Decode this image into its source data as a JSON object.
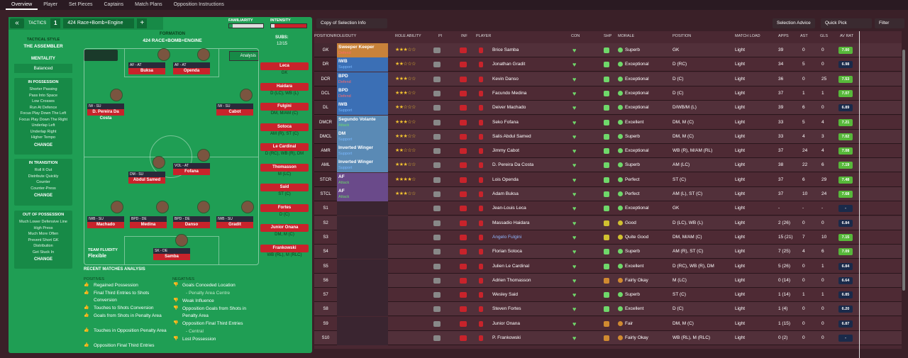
{
  "nav": {
    "tabs": [
      "Overview",
      "Player",
      "Set Pieces",
      "Captains",
      "Match Plans",
      "Opposition Instructions"
    ]
  },
  "tactic": {
    "label": "TACTICS",
    "slot": "1",
    "name": "424 Race+Bomb+Engine",
    "familiarity": "FAMILIARITY",
    "intensity": "INTENSITY"
  },
  "formation": {
    "title": "FORMATION",
    "name": "424 RACE+BOMB+ENGINE",
    "subs_label": "SUBS:",
    "subs_value": "12/15",
    "analysis": "Analysis"
  },
  "style": {
    "title": "TACTICAL STYLE",
    "name": "THE ASSEMBLER",
    "mentality_label": "MENTALITY",
    "mentality": "Balanced"
  },
  "possession": {
    "title": "IN POSSESSION",
    "items": [
      "Shorter Passing",
      "Pass Into Space",
      "Low Crosses",
      "Run At Defence",
      "Focus Play Down The Left",
      "Focus Play Down The Right",
      "Underlap Left",
      "Underlap Right",
      "Higher Tempo"
    ],
    "change": "CHANGE"
  },
  "transition": {
    "title": "IN TRANSITION",
    "items": [
      "Roll It Out",
      "Distribute Quickly",
      "Counter",
      "Counter-Press"
    ],
    "change": "CHANGE"
  },
  "oop": {
    "title": "OUT OF POSSESSION",
    "items": [
      "Much Lower Defensive Line",
      "High Press",
      "Much More Often",
      "Prevent Short GK",
      "Distribution",
      "Get Stuck In"
    ],
    "change": "CHANGE"
  },
  "fluidity": {
    "label": "TEAM FLUIDITY",
    "value": "Flexible"
  },
  "pitch_players": [
    {
      "role": "AF - AT",
      "name": "Buksa"
    },
    {
      "role": "AF - AT",
      "name": "Openda"
    },
    {
      "role": "IW - SU",
      "name": "D. Pereira Da Costa"
    },
    {
      "role": "IW - SU",
      "name": "Cabot"
    },
    {
      "role": "DM - SU",
      "name": "Abdul Samed"
    },
    {
      "role": "VOL - AT",
      "name": "Fofana"
    },
    {
      "role": "IWB - SU",
      "name": "Machado"
    },
    {
      "role": "BPD - DE",
      "name": "Medina"
    },
    {
      "role": "BPD - DE",
      "name": "Danso"
    },
    {
      "role": "IWB - SU",
      "name": "Gradit"
    },
    {
      "role": "SK - DE",
      "name": "Samba"
    }
  ],
  "subs": [
    {
      "name": "Leca",
      "pos": "GK"
    },
    {
      "name": "Haidara",
      "pos": "D (LC), WB (L)"
    },
    {
      "name": "Fulgini",
      "pos": "DM, M/AM (C)"
    },
    {
      "name": "Sotoca",
      "pos": "AM (R), ST (C)"
    },
    {
      "name": "Le Cardinal",
      "pos": "D (RC), WB (R), DM"
    },
    {
      "name": "Thomasson",
      "pos": "M (LC)"
    },
    {
      "name": "Said",
      "pos": "ST (C)"
    },
    {
      "name": "Fortes",
      "pos": "D (C)"
    },
    {
      "name": "Junior Onana",
      "pos": "DM, M (C)"
    },
    {
      "name": "Frankowski",
      "pos": "WB (RL), M (RLC)"
    }
  ],
  "analysis": {
    "title": "RECENT MATCHES ANALYSIS",
    "pos_label": "POSITIVES",
    "neg_label": "NEGATIVES",
    "positives": [
      "Regained Possession",
      "Final Third Entries to Shots Conversion",
      "Touches to Shots Conversion",
      "Goals from Shots in Penalty Area",
      "Touches in Opposition Penalty Area",
      "Opposition Final Third Entries"
    ],
    "negatives": [
      "Goals Conceded Location",
      "- Penalty Area Centre",
      "Weak Influence",
      "Opposition Goals from Shots in Penalty Area",
      "Opposition Final Third Entries",
      "- Central",
      "Lost Possession"
    ]
  },
  "toolbar": {
    "view": "Copy of Selection Info",
    "advice": "Selection Advice",
    "quick": "Quick Pick",
    "filter": "Filter"
  },
  "columns": [
    "POSITION/ROLE/DUTY",
    "ROLE ABILITY",
    "PI",
    "INF",
    "PLAYER",
    "CON",
    "SHP",
    "MORALE",
    "POSITION",
    "MATCH LOAD",
    "APPS",
    "AST",
    "GLS",
    "AV RAT"
  ],
  "rows": [
    {
      "pos": "GK",
      "role": "Sweeper Keeper",
      "duty": "Defend",
      "stars": 3,
      "player": "Brice Samba",
      "morale": "Superb",
      "position": "GK",
      "load": "Light",
      "apps": "39",
      "ast": "0",
      "gls": "0",
      "rat": "7.00"
    },
    {
      "pos": "DR",
      "role": "IWB",
      "duty": "Support",
      "stars": 2,
      "player": "Jonathan Gradit",
      "morale": "Exceptional",
      "position": "D (RC)",
      "load": "Light",
      "apps": "34",
      "ast": "5",
      "gls": "0",
      "rat": "6.98"
    },
    {
      "pos": "DCR",
      "role": "BPD",
      "duty": "Defend",
      "stars": 3,
      "player": "Kevin Danso",
      "morale": "Exceptional",
      "position": "D (C)",
      "load": "Light",
      "apps": "36",
      "ast": "0",
      "gls": "25",
      "rat": "7.53"
    },
    {
      "pos": "DCL",
      "role": "BPD",
      "duty": "Defend",
      "stars": 3.5,
      "player": "Facundo Medina",
      "morale": "Exceptional",
      "position": "D (C)",
      "load": "Light",
      "apps": "37",
      "ast": "1",
      "gls": "1",
      "rat": "7.07"
    },
    {
      "pos": "DL",
      "role": "IWB",
      "duty": "Support",
      "stars": 2,
      "player": "Deiver Machado",
      "morale": "Exceptional",
      "position": "D/WB/M (L)",
      "load": "Light",
      "apps": "39",
      "ast": "6",
      "gls": "0",
      "rat": "6.89"
    },
    {
      "pos": "DMCR",
      "role": "Segundo Volante",
      "duty": "Attack",
      "stars": 3,
      "player": "Seko Fofana",
      "morale": "Excellent",
      "position": "DM, M (C)",
      "load": "Light",
      "apps": "33",
      "ast": "5",
      "gls": "4",
      "rat": "7.21"
    },
    {
      "pos": "DMCL",
      "role": "DM",
      "duty": "Support",
      "stars": 3,
      "player": "Salis Abdul Samed",
      "morale": "Superb",
      "position": "DM, M (C)",
      "load": "Light",
      "apps": "33",
      "ast": "4",
      "gls": "3",
      "rat": "7.02"
    },
    {
      "pos": "AMR",
      "role": "Inverted Winger",
      "duty": "Support",
      "stars": 2.5,
      "player": "Jimmy Cabot",
      "morale": "Exceptional",
      "position": "WB (R), M/AM (RL)",
      "load": "Light",
      "apps": "37",
      "ast": "24",
      "gls": "4",
      "rat": "7.08"
    },
    {
      "pos": "AML",
      "role": "Inverted Winger",
      "duty": "Support",
      "stars": 3.5,
      "player": "D. Pereira Da Costa",
      "morale": "Superb",
      "position": "AM (LC)",
      "load": "Light",
      "apps": "38",
      "ast": "22",
      "gls": "6",
      "rat": "7.19"
    },
    {
      "pos": "STCR",
      "role": "AF",
      "duty": "Attack",
      "stars": 4,
      "player": "Lois Openda",
      "morale": "Perfect",
      "position": "ST (C)",
      "load": "Light",
      "apps": "37",
      "ast": "6",
      "gls": "29",
      "rat": "7.48"
    },
    {
      "pos": "STCL",
      "role": "AF",
      "duty": "Attack",
      "stars": 3.5,
      "player": "Adam Buksa",
      "morale": "Perfect",
      "position": "AM (L), ST (C)",
      "load": "Light",
      "apps": "37",
      "ast": "10",
      "gls": "24",
      "rat": "7.68"
    },
    {
      "pos": "S1",
      "role": "",
      "duty": "",
      "stars": 0,
      "player": "Jean-Louis Leca",
      "morale": "Exceptional",
      "position": "GK",
      "load": "Light",
      "apps": "-",
      "ast": "-",
      "gls": "-",
      "rat": "-"
    },
    {
      "pos": "S2",
      "role": "",
      "duty": "",
      "stars": 0,
      "player": "Massadio Haidara",
      "morale": "Good",
      "position": "D (LC), WB (L)",
      "load": "Light",
      "apps": "2 (26)",
      "ast": "0",
      "gls": "0",
      "rat": "6.84"
    },
    {
      "pos": "S3",
      "role": "",
      "duty": "",
      "stars": 0,
      "player": "Angelo Fulgini",
      "morale": "Quite Good",
      "position": "DM, M/AM (C)",
      "load": "Light",
      "apps": "15 (21)",
      "ast": "7",
      "gls": "10",
      "rat": "7.15"
    },
    {
      "pos": "S4",
      "role": "",
      "duty": "",
      "stars": 0,
      "player": "Florian Sotoca",
      "morale": "Superb",
      "position": "AM (R), ST (C)",
      "load": "Light",
      "apps": "7 (25)",
      "ast": "4",
      "gls": "6",
      "rat": "7.09"
    },
    {
      "pos": "S5",
      "role": "",
      "duty": "",
      "stars": 0,
      "player": "Julien Le Cardinal",
      "morale": "Excellent",
      "position": "D (RC), WB (R), DM",
      "load": "Light",
      "apps": "5 (26)",
      "ast": "0",
      "gls": "1",
      "rat": "6.84"
    },
    {
      "pos": "S6",
      "role": "",
      "duty": "",
      "stars": 0,
      "player": "Adrien Thomasson",
      "morale": "Fairly Okay",
      "position": "M (LC)",
      "load": "Light",
      "apps": "0 (14)",
      "ast": "0",
      "gls": "0",
      "rat": "6.64"
    },
    {
      "pos": "S7",
      "role": "",
      "duty": "",
      "stars": 0,
      "player": "Wesley Said",
      "morale": "Superb",
      "position": "ST (C)",
      "load": "Light",
      "apps": "1 (14)",
      "ast": "1",
      "gls": "1",
      "rat": "6.85"
    },
    {
      "pos": "S8",
      "role": "",
      "duty": "",
      "stars": 0,
      "player": "Steven Fortes",
      "morale": "Excellent",
      "position": "D (C)",
      "load": "Light",
      "apps": "1 (4)",
      "ast": "0",
      "gls": "0",
      "rat": "6.20"
    },
    {
      "pos": "S9",
      "role": "",
      "duty": "",
      "stars": 0,
      "player": "Junior Onana",
      "morale": "Fair",
      "position": "DM, M (C)",
      "load": "Light",
      "apps": "1 (15)",
      "ast": "0",
      "gls": "0",
      "rat": "6.87"
    },
    {
      "pos": "S10",
      "role": "",
      "duty": "",
      "stars": 0,
      "player": "P. Frankowski",
      "morale": "Fairly Okay",
      "position": "WB (RL), M (RLC)",
      "load": "Light",
      "apps": "0 (2)",
      "ast": "0",
      "gls": "0",
      "rat": "-"
    }
  ],
  "colors": {
    "pitch": "#1f9e54",
    "row_bg": "#4a2832",
    "gk": "#c8823a",
    "def": "#3b6fb5",
    "mid": "#5a8ab5",
    "att": "#6a4a8a",
    "green_rat": "#57b83a",
    "red": "#c8232b"
  }
}
